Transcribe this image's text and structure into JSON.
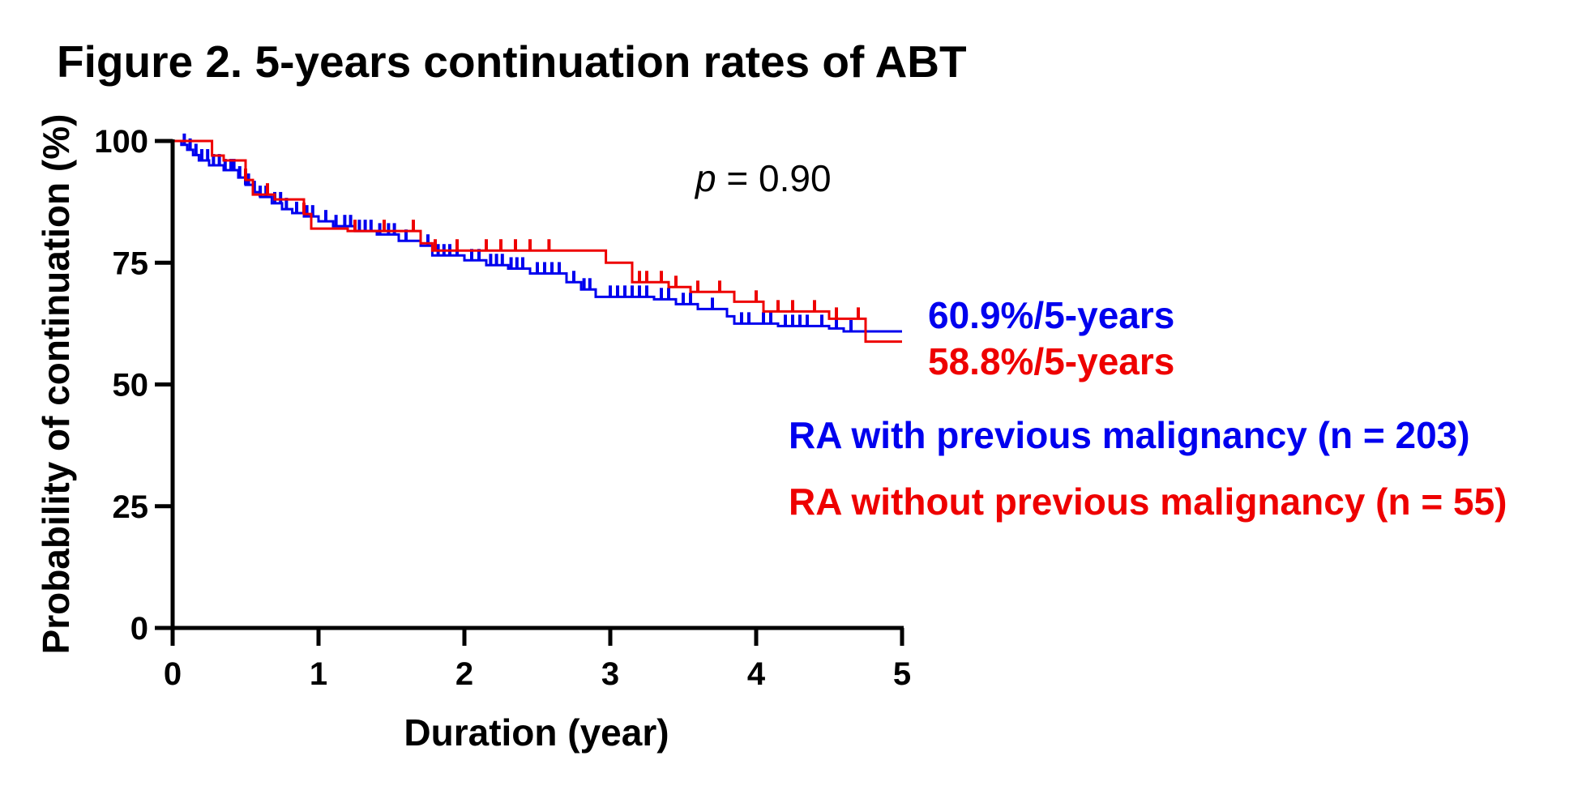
{
  "title": "Figure 2. 5-years continuation rates of ABT",
  "colors": {
    "series_a": "#0000ee",
    "series_b": "#ee0000",
    "axis": "#000000"
  },
  "chart_data": {
    "type": "line",
    "step": true,
    "xlabel": "Duration (year)",
    "ylabel": "Probability of continuation (%)",
    "xlim": [
      0,
      5
    ],
    "ylim": [
      0,
      100
    ],
    "xticks": [
      "0",
      "1",
      "2",
      "3",
      "4",
      "5"
    ],
    "yticks": [
      "0",
      "25",
      "50",
      "75",
      "100"
    ],
    "grid": false,
    "annotation": {
      "prefix": "p",
      "text": " = 0.90"
    },
    "series": [
      {
        "name": "RA with previous malignancy (n = 203)",
        "end_label": "60.9%/5-years",
        "color": "#0000ee",
        "steps": [
          [
            0,
            100
          ],
          [
            0.06,
            99.2
          ],
          [
            0.1,
            98.2
          ],
          [
            0.14,
            97.1
          ],
          [
            0.18,
            96.0
          ],
          [
            0.25,
            95.0
          ],
          [
            0.35,
            94.0
          ],
          [
            0.45,
            92.5
          ],
          [
            0.5,
            91.0
          ],
          [
            0.55,
            89.5
          ],
          [
            0.6,
            88.5
          ],
          [
            0.68,
            87.2
          ],
          [
            0.75,
            86.0
          ],
          [
            0.82,
            85.2
          ],
          [
            0.9,
            84.5
          ],
          [
            1.0,
            83.5
          ],
          [
            1.1,
            82.5
          ],
          [
            1.25,
            81.5
          ],
          [
            1.4,
            80.8
          ],
          [
            1.55,
            79.5
          ],
          [
            1.7,
            78.5
          ],
          [
            1.78,
            76.5
          ],
          [
            2.0,
            75.5
          ],
          [
            2.15,
            74.5
          ],
          [
            2.3,
            73.8
          ],
          [
            2.45,
            72.8
          ],
          [
            2.7,
            71.0
          ],
          [
            2.8,
            69.5
          ],
          [
            2.9,
            68.0
          ],
          [
            3.3,
            67.5
          ],
          [
            3.45,
            66.5
          ],
          [
            3.6,
            65.5
          ],
          [
            3.8,
            64.0
          ],
          [
            3.85,
            62.5
          ],
          [
            4.15,
            62.0
          ],
          [
            4.5,
            61.5
          ],
          [
            4.6,
            60.9
          ],
          [
            5.0,
            60.9
          ]
        ],
        "censor_x": [
          0.08,
          0.12,
          0.16,
          0.2,
          0.24,
          0.28,
          0.32,
          0.36,
          0.4,
          0.42,
          0.46,
          0.5,
          0.52,
          0.56,
          0.6,
          0.64,
          0.7,
          0.74,
          0.78,
          0.85,
          0.92,
          0.96,
          1.05,
          1.12,
          1.18,
          1.22,
          1.28,
          1.32,
          1.36,
          1.42,
          1.48,
          1.52,
          1.6,
          1.75,
          1.82,
          1.86,
          1.9,
          1.95,
          2.05,
          2.1,
          2.18,
          2.22,
          2.26,
          2.32,
          2.36,
          2.4,
          2.5,
          2.55,
          2.6,
          2.65,
          2.75,
          2.82,
          2.86,
          3.0,
          3.05,
          3.1,
          3.15,
          3.2,
          3.25,
          3.35,
          3.4,
          3.5,
          3.55,
          3.7,
          3.9,
          3.95,
          4.05,
          4.1,
          4.2,
          4.25,
          4.3,
          4.35,
          4.45,
          4.55,
          4.65
        ]
      },
      {
        "name": "RA without previous malignancy (n = 55)",
        "end_label": "58.8%/5-years",
        "color": "#ee0000",
        "steps": [
          [
            0,
            100
          ],
          [
            0.27,
            97.0
          ],
          [
            0.35,
            96.0
          ],
          [
            0.5,
            92.0
          ],
          [
            0.55,
            89.0
          ],
          [
            0.7,
            88.0
          ],
          [
            0.9,
            85.0
          ],
          [
            0.95,
            82.0
          ],
          [
            1.2,
            81.5
          ],
          [
            1.7,
            79.0
          ],
          [
            1.78,
            77.5
          ],
          [
            2.97,
            75.0
          ],
          [
            3.15,
            71.0
          ],
          [
            3.4,
            70.0
          ],
          [
            3.55,
            69.0
          ],
          [
            3.85,
            67.0
          ],
          [
            4.05,
            65.0
          ],
          [
            4.5,
            63.5
          ],
          [
            4.75,
            58.8
          ],
          [
            5.0,
            58.8
          ]
        ],
        "censor_x": [
          0.5,
          0.65,
          0.9,
          1.25,
          1.45,
          1.65,
          1.8,
          1.95,
          2.15,
          2.25,
          2.35,
          2.45,
          2.58,
          3.2,
          3.25,
          3.35,
          3.45,
          3.6,
          3.75,
          4.0,
          4.15,
          4.25,
          4.4,
          4.55,
          4.7
        ]
      }
    ]
  }
}
